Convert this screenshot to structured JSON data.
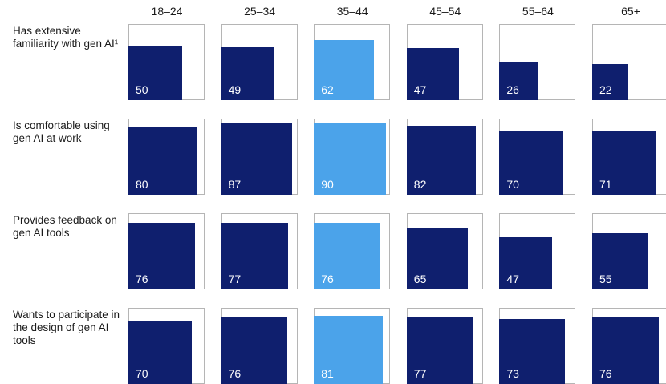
{
  "chart_data": {
    "type": "square-area-grid",
    "categories": [
      "18–24",
      "25–34",
      "35–44",
      "45–54",
      "55–64",
      "65+"
    ],
    "colors": [
      "#0f1f6e",
      "#0f1f6e",
      "#4ba3ea",
      "#0f1f6e",
      "#0f1f6e",
      "#0f1f6e"
    ],
    "ylim": [
      0,
      100
    ],
    "series": [
      {
        "name": "Has extensive familiarity with gen AI¹",
        "values": [
          50,
          49,
          62,
          47,
          26,
          22
        ]
      },
      {
        "name": "Is comfortable using gen AI at work",
        "values": [
          80,
          87,
          90,
          82,
          70,
          71
        ]
      },
      {
        "name": "Provides feedback on gen AI tools",
        "values": [
          76,
          77,
          76,
          65,
          47,
          55
        ]
      },
      {
        "name": "Wants to participate in the design of gen AI tools",
        "values": [
          70,
          76,
          81,
          77,
          73,
          76
        ]
      }
    ]
  }
}
